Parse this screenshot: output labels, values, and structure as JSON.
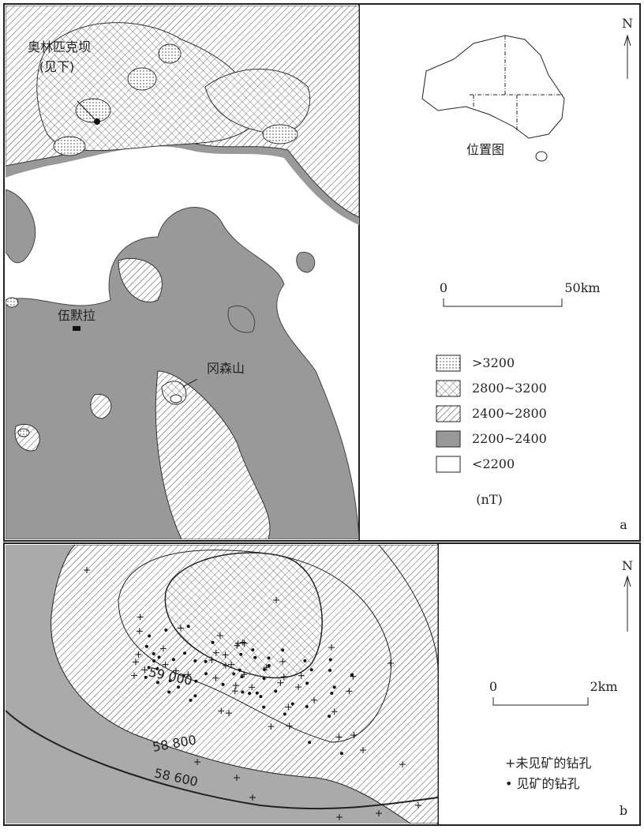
{
  "panel_a": {
    "north": "N",
    "location_map_title": "位置图",
    "scale": {
      "start": "0",
      "end": "50km"
    },
    "places": {
      "olympic_dam": "奥林匹克坝",
      "olympic_dam_note": "(见下)",
      "woomera": "伍默拉",
      "mount_gunson": "冈森山"
    },
    "legend": {
      "items": [
        ">3200",
        "2800~3200",
        "2400~2800",
        "2200~2400",
        "<2200"
      ],
      "unit": "(nT)"
    },
    "panel_label": "a"
  },
  "panel_b": {
    "north": "N",
    "contours": [
      "59 000",
      "58 800",
      "58 600"
    ],
    "scale": {
      "start": "0",
      "end": "2km"
    },
    "legend": [
      "+未见矿的钻孔",
      "• 见矿的钻孔"
    ],
    "panel_label": "b"
  }
}
